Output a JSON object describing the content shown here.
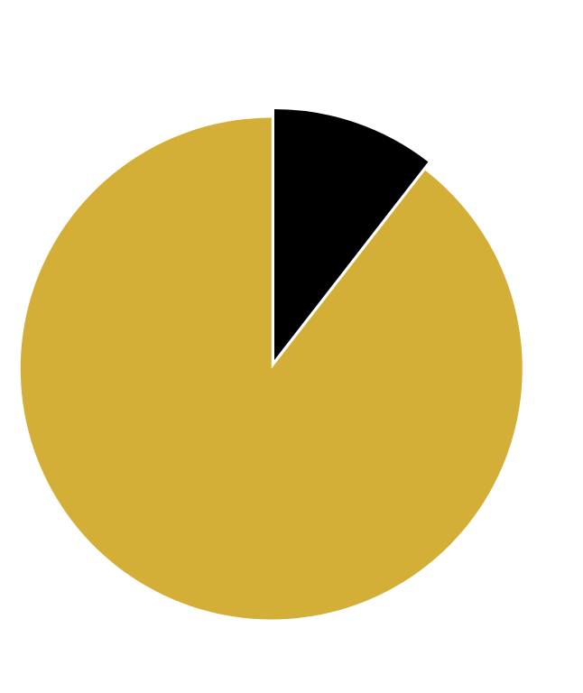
{
  "chart_data": {
    "type": "pie",
    "start_angle": "12 o'clock",
    "direction": "clockwise",
    "legend": "none",
    "slices": [
      {
        "value": 10.5,
        "color": "#000000",
        "exploded": false
      },
      {
        "value": 89.5,
        "color": "#d4af37",
        "exploded": true
      }
    ]
  }
}
